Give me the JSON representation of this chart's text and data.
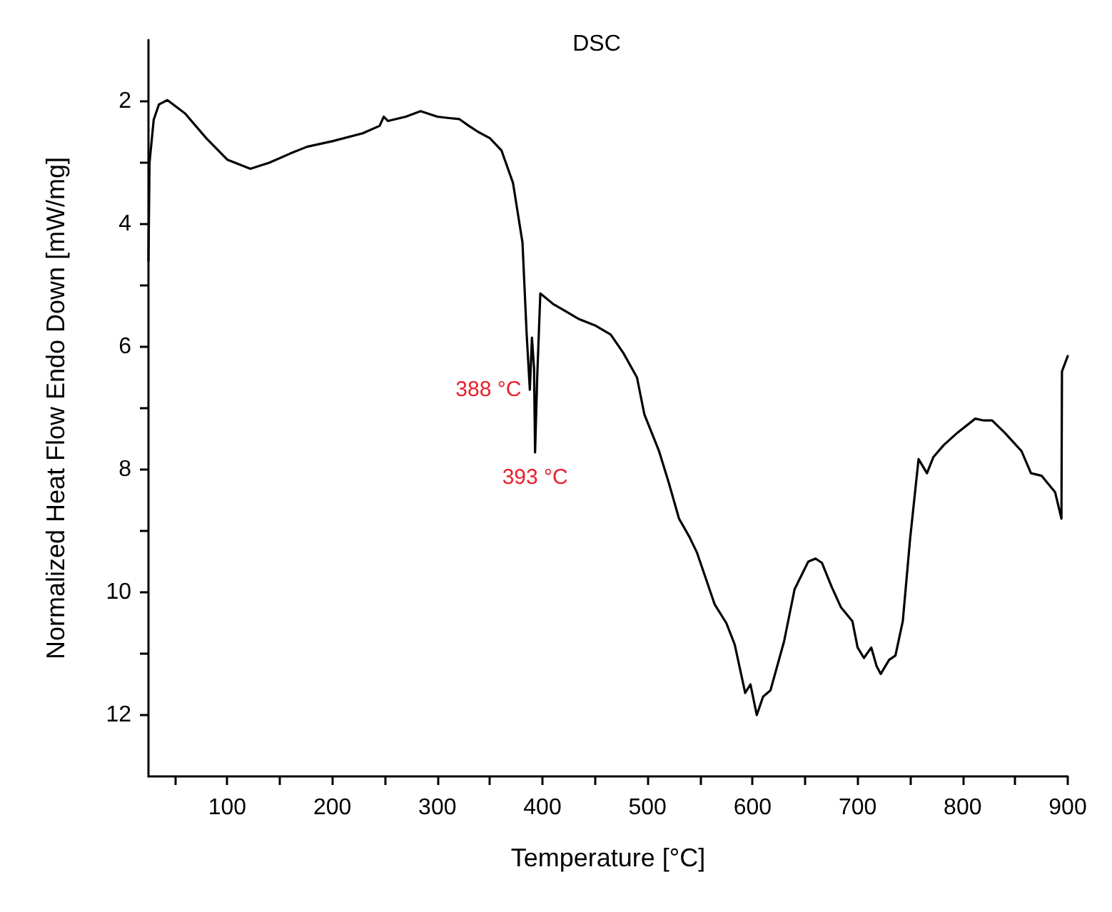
{
  "chart_data": {
    "type": "line",
    "title": "DSC",
    "xlabel": "Temperature [°C]",
    "ylabel": "Normalized Heat Flow Endo Down [mW/mg]",
    "xlim": [
      25,
      900
    ],
    "xticks": [
      {
        "value": 50,
        "label": null
      },
      100,
      {
        "value": 150,
        "label": null
      },
      200,
      {
        "value": 250,
        "label": null
      },
      300,
      {
        "value": 350,
        "label": null
      },
      400,
      {
        "value": 450,
        "label": null
      },
      500,
      {
        "value": 550,
        "label": null
      },
      600,
      {
        "value": 650,
        "label": null
      },
      700,
      {
        "value": 750,
        "label": null
      },
      800,
      {
        "value": 850,
        "label": null
      },
      900
    ],
    "ylim": [
      13,
      1
    ],
    "yticks": [
      2,
      {
        "value": 3,
        "label": null
      },
      4,
      {
        "value": 5,
        "label": null
      },
      6,
      {
        "value": 7,
        "label": null
      },
      8,
      {
        "value": 9,
        "label": null
      },
      10,
      {
        "value": 11,
        "label": null
      },
      12
    ],
    "grid": false,
    "marker": "none",
    "line_style": "solid",
    "series": [
      {
        "color": "#000000",
        "x": [
          25,
          26,
          30,
          35,
          43,
          60,
          80,
          100,
          122,
          140,
          160,
          176,
          200,
          229,
          245,
          249,
          253,
          270,
          284,
          300,
          310,
          321,
          330,
          339,
          350,
          361,
          372,
          381,
          385,
          388,
          390,
          392,
          393,
          395,
          398,
          410,
          420,
          435,
          450,
          465,
          477,
          490,
          497,
          511,
          520,
          530,
          540,
          547,
          556,
          564,
          575,
          583,
          593,
          598,
          604,
          610,
          617,
          630,
          640,
          653,
          660,
          666,
          675,
          684,
          695,
          700,
          706,
          713,
          718,
          722,
          730,
          736,
          743,
          750,
          758,
          766,
          772,
          782,
          795,
          812,
          820,
          828,
          840,
          856,
          865,
          875,
          888,
          894,
          894.5,
          900
        ],
        "values": [
          4.6,
          3.0,
          2.3,
          2.05,
          1.98,
          2.2,
          2.6,
          2.95,
          3.1,
          3.0,
          2.85,
          2.74,
          2.65,
          2.52,
          2.4,
          2.25,
          2.32,
          2.25,
          2.16,
          2.25,
          2.27,
          2.29,
          2.4,
          2.5,
          2.6,
          2.8,
          3.33,
          4.3,
          5.8,
          6.7,
          5.85,
          6.35,
          7.72,
          6.5,
          5.13,
          5.3,
          5.4,
          5.55,
          5.65,
          5.8,
          6.1,
          6.5,
          7.1,
          7.7,
          8.2,
          8.8,
          9.1,
          9.35,
          9.8,
          10.2,
          10.5,
          10.85,
          11.64,
          11.5,
          12.0,
          11.7,
          11.6,
          10.8,
          9.95,
          9.5,
          9.45,
          9.52,
          9.9,
          10.24,
          10.47,
          10.9,
          11.07,
          10.9,
          11.2,
          11.33,
          11.1,
          11.03,
          10.47,
          9.12,
          7.83,
          8.06,
          7.8,
          7.6,
          7.4,
          7.17,
          7.2,
          7.2,
          7.4,
          7.7,
          8.06,
          8.1,
          8.37,
          8.8,
          6.4,
          6.15
        ]
      }
    ],
    "annotations": [
      {
        "text": "388 °C",
        "x": 388,
        "y": 6.7
      },
      {
        "text": "393 °C",
        "x": 393,
        "y": 7.72
      }
    ]
  }
}
